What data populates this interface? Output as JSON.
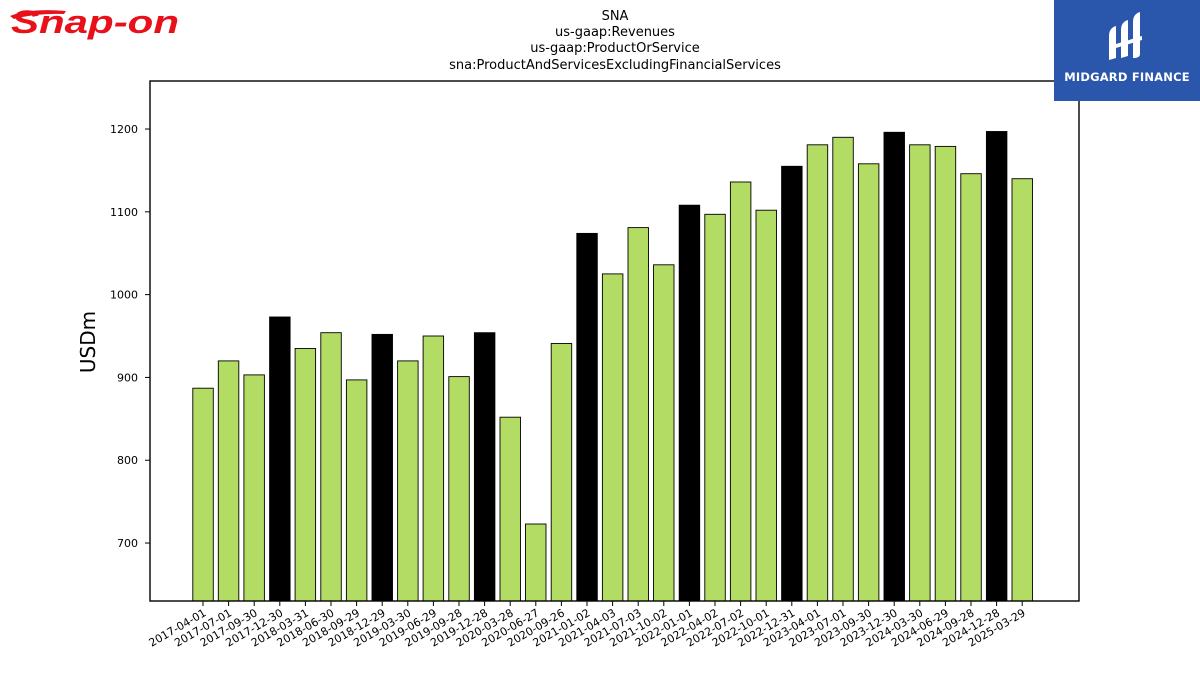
{
  "brand_left": "Snap-on",
  "brand_right": "MIDGARD FINANCE",
  "colors": {
    "bar": "#b2dc64",
    "highlight": "#000000",
    "brand_red": "#e8111a",
    "brand_blue": "#2a57ab"
  },
  "chart_data": {
    "type": "bar",
    "title": [
      "SNA",
      "us-gaap:Revenues",
      "us-gaap:ProductOrService",
      "sna:ProductAndServicesExcludingFinancialServices"
    ],
    "xlabel": "",
    "ylabel": "USDm",
    "ylim": [
      630,
      1258
    ],
    "yticks": [
      700,
      800,
      900,
      1000,
      1100,
      1200
    ],
    "grid": false,
    "categories": [
      "2017-04-01",
      "2017-07-01",
      "2017-09-30",
      "2017-12-30",
      "2018-03-31",
      "2018-06-30",
      "2018-09-29",
      "2018-12-29",
      "2019-03-30",
      "2019-06-29",
      "2019-09-28",
      "2019-12-28",
      "2020-03-28",
      "2020-06-27",
      "2020-09-26",
      "2021-01-02",
      "2021-04-03",
      "2021-07-03",
      "2021-10-02",
      "2022-01-01",
      "2022-04-02",
      "2022-07-02",
      "2022-10-01",
      "2022-12-31",
      "2023-04-01",
      "2023-07-01",
      "2023-09-30",
      "2023-12-30",
      "2024-03-30",
      "2024-06-29",
      "2024-09-28",
      "2024-12-28",
      "2025-03-29"
    ],
    "values": [
      887,
      920,
      903,
      973,
      935,
      954,
      897,
      952,
      920,
      950,
      901,
      954,
      852,
      723,
      941,
      1074,
      1025,
      1081,
      1036,
      1108,
      1097,
      1136,
      1102,
      1155,
      1181,
      1190,
      1158,
      1196,
      1181,
      1179,
      1146,
      1197,
      1140
    ],
    "highlighted": [
      false,
      false,
      false,
      true,
      false,
      false,
      false,
      true,
      false,
      false,
      false,
      true,
      false,
      false,
      false,
      true,
      false,
      false,
      false,
      true,
      false,
      false,
      false,
      true,
      false,
      false,
      false,
      true,
      false,
      false,
      false,
      true,
      false
    ]
  }
}
